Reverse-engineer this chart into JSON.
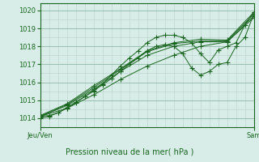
{
  "bg_color": "#d8ede8",
  "plot_bg": "#cce8e0",
  "grid_color_major": "#b0c8c0",
  "grid_color_minor": "#c0d8d0",
  "line_color": "#1a6620",
  "title": "Pression niveau de la mer( hPa )",
  "xlabel_left": "Jeu/Ven",
  "xlabel_right": "Sam",
  "ylim": [
    1013.5,
    1020.4
  ],
  "xlim": [
    0,
    48
  ],
  "yticks": [
    1014,
    1015,
    1016,
    1017,
    1018,
    1019,
    1020
  ],
  "series": [
    {
      "x": [
        0,
        2,
        4,
        6,
        8,
        10,
        12,
        14,
        16,
        18,
        20,
        22,
        24,
        26,
        28,
        30,
        32,
        34,
        36,
        38,
        40,
        42,
        44,
        46,
        48
      ],
      "y": [
        1014.1,
        1014.15,
        1014.3,
        1014.55,
        1014.85,
        1015.2,
        1015.5,
        1015.9,
        1016.4,
        1016.9,
        1017.35,
        1017.75,
        1018.2,
        1018.5,
        1018.62,
        1018.62,
        1018.5,
        1018.2,
        1017.6,
        1017.1,
        1017.8,
        1018.0,
        1018.2,
        1019.2,
        1019.9
      ]
    },
    {
      "x": [
        0,
        2,
        4,
        6,
        8,
        10,
        12,
        14,
        16,
        18,
        20,
        22,
        24,
        26,
        28,
        30,
        32,
        34,
        36,
        38,
        40,
        42,
        44,
        46,
        48
      ],
      "y": [
        1014.0,
        1014.1,
        1014.3,
        1014.6,
        1014.9,
        1015.2,
        1015.55,
        1015.85,
        1016.2,
        1016.6,
        1017.0,
        1017.35,
        1017.75,
        1018.0,
        1018.1,
        1018.0,
        1017.6,
        1016.8,
        1016.4,
        1016.6,
        1017.0,
        1017.1,
        1018.0,
        1018.5,
        1019.8
      ]
    },
    {
      "x": [
        0,
        6,
        12,
        18,
        24,
        30,
        36,
        42,
        48
      ],
      "y": [
        1014.1,
        1014.7,
        1015.6,
        1016.6,
        1017.5,
        1018.0,
        1018.25,
        1018.25,
        1019.7
      ]
    },
    {
      "x": [
        0,
        6,
        12,
        18,
        24,
        30,
        36,
        42,
        48
      ],
      "y": [
        1014.1,
        1014.75,
        1015.7,
        1016.7,
        1017.7,
        1018.15,
        1018.3,
        1018.3,
        1019.8
      ]
    },
    {
      "x": [
        0,
        6,
        12,
        18,
        24,
        30,
        36,
        42,
        48
      ],
      "y": [
        1014.15,
        1014.8,
        1015.8,
        1016.75,
        1017.75,
        1018.2,
        1018.4,
        1018.35,
        1019.9
      ]
    },
    {
      "x": [
        0,
        6,
        12,
        18,
        24,
        30,
        36,
        42,
        48
      ],
      "y": [
        1014.1,
        1014.55,
        1015.3,
        1016.15,
        1016.9,
        1017.5,
        1018.0,
        1018.25,
        1019.6
      ]
    }
  ]
}
